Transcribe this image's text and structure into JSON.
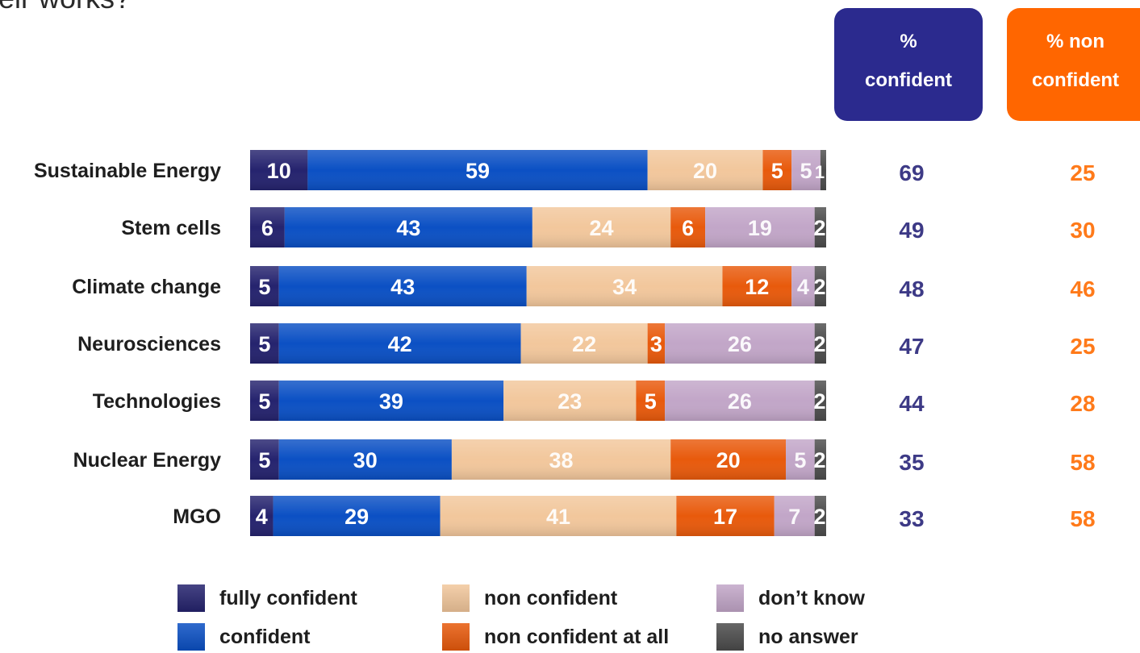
{
  "page": {
    "top_title_fragment": "eir works?"
  },
  "headers": {
    "confident": "%\nconfident",
    "non_confident": "% non\nconfident"
  },
  "colors": {
    "fully_confident": "#25236e",
    "confident": "#0b50c4",
    "non_confident": "#f2c79c",
    "non_confident_at_all": "#e85a0c",
    "dont_know": "#c2a6c8",
    "no_answer": "#4c4c4c",
    "header_confident": "#2b2a8e",
    "header_non_confident": "#ff6600",
    "total_confident_text": "#3d3a86",
    "total_non_confident_text": "#ff7a1a"
  },
  "legend": [
    {
      "key": "fully_confident",
      "label": "fully confident"
    },
    {
      "key": "confident",
      "label": "confident"
    },
    {
      "key": "non_confident",
      "label": "non confident"
    },
    {
      "key": "non_confident_at_all",
      "label": "non confident at all"
    },
    {
      "key": "dont_know",
      "label": "don’t know"
    },
    {
      "key": "no_answer",
      "label": "no answer"
    }
  ],
  "chart_data": {
    "type": "bar",
    "orientation": "horizontal-stacked-100",
    "title": "",
    "xlabel": "",
    "ylabel": "",
    "xlim": [
      0,
      100
    ],
    "grid": false,
    "legend_position": "bottom",
    "categories": [
      "Sustainable Energy",
      "Stem cells",
      "Climate change",
      "Neurosciences",
      "Technologies",
      "Nuclear Energy",
      "MGO"
    ],
    "series": [
      {
        "name": "fully confident",
        "key": "fully_confident",
        "values": [
          10,
          6,
          5,
          5,
          5,
          5,
          4
        ]
      },
      {
        "name": "confident",
        "key": "confident",
        "values": [
          59,
          43,
          43,
          42,
          39,
          30,
          29
        ]
      },
      {
        "name": "non confident",
        "key": "non_confident",
        "values": [
          20,
          24,
          34,
          22,
          23,
          38,
          41
        ]
      },
      {
        "name": "non confident at all",
        "key": "non_confident_at_all",
        "values": [
          5,
          6,
          12,
          3,
          5,
          20,
          17
        ]
      },
      {
        "name": "don’t know",
        "key": "dont_know",
        "values": [
          5,
          19,
          4,
          26,
          26,
          5,
          7
        ]
      },
      {
        "name": "no answer",
        "key": "no_answer",
        "values": [
          1,
          2,
          2,
          2,
          2,
          2,
          2
        ]
      }
    ],
    "totals": {
      "confident": [
        69,
        49,
        48,
        47,
        44,
        35,
        33
      ],
      "non_confident": [
        25,
        30,
        46,
        25,
        28,
        58,
        58
      ]
    }
  }
}
